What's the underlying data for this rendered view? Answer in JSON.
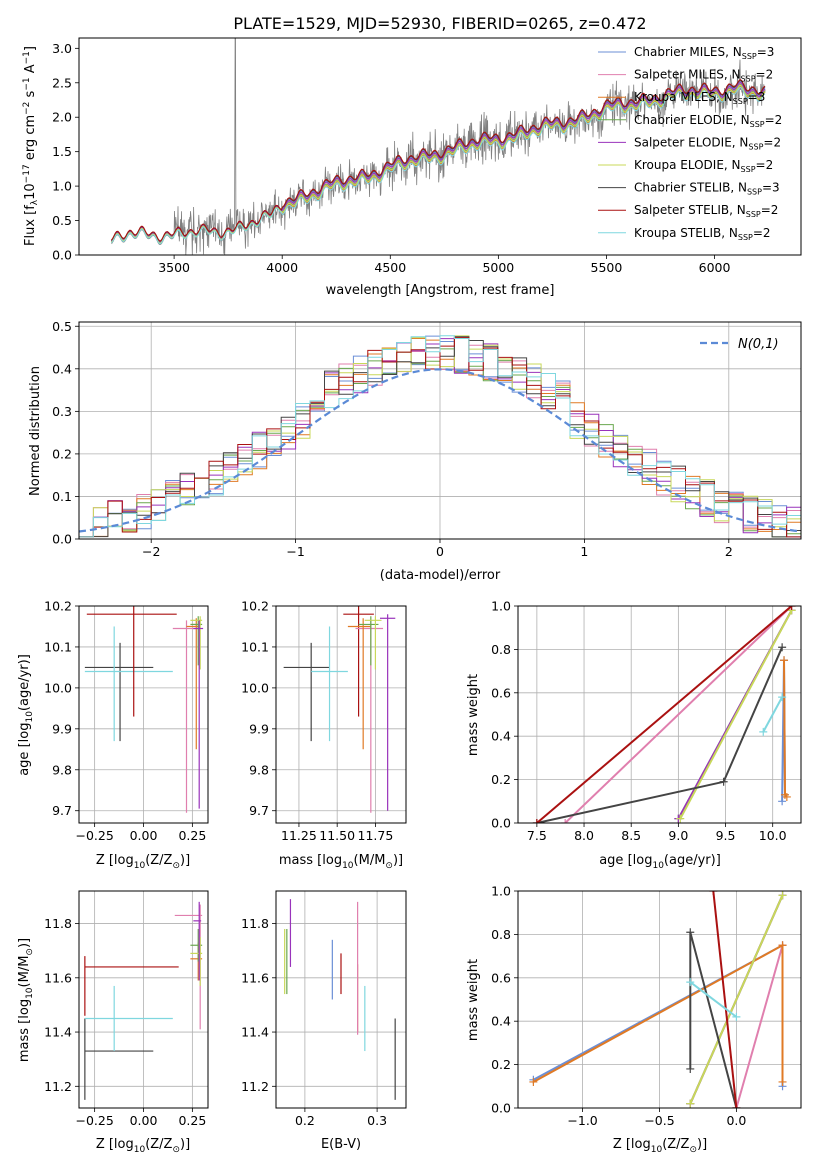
{
  "figure": {
    "title": "PLATE=1529, MJD=52930, FIBERID=0265, z=0.472"
  },
  "colors": {
    "chabrier_miles": "#6b8fd6",
    "salpeter_miles": "#e07fae",
    "kroupa_miles": "#e07a25",
    "chabrier_elodie": "#6aa84f",
    "salpeter_elodie": "#9933bb",
    "kroupa_elodie": "#c8d85a",
    "chabrier_stelib": "#444444",
    "salpeter_stelib": "#aa1111",
    "kroupa_stelib": "#7fd7df",
    "data": "#808080",
    "gaussian": "#5b8ad6"
  },
  "legend_series": [
    {
      "prefix": "Chabrier MILES, N",
      "sub": "SSP",
      "suffix": "=3",
      "color_key": "chabrier_miles"
    },
    {
      "prefix": "Salpeter MILES, N",
      "sub": "SSP",
      "suffix": "=2",
      "color_key": "salpeter_miles"
    },
    {
      "prefix": "Kroupa MILES, N",
      "sub": "SSP",
      "suffix": "=3",
      "color_key": "kroupa_miles"
    },
    {
      "prefix": "Chabrier ELODIE, N",
      "sub": "SSP",
      "suffix": "=2",
      "color_key": "chabrier_elodie"
    },
    {
      "prefix": "Salpeter ELODIE, N",
      "sub": "SSP",
      "suffix": "=2",
      "color_key": "salpeter_elodie"
    },
    {
      "prefix": "Kroupa ELODIE, N",
      "sub": "SSP",
      "suffix": "=2",
      "color_key": "kroupa_elodie"
    },
    {
      "prefix": "Chabrier STELIB, N",
      "sub": "SSP",
      "suffix": "=3",
      "color_key": "chabrier_stelib"
    },
    {
      "prefix": "Salpeter STELIB, N",
      "sub": "SSP",
      "suffix": "=2",
      "color_key": "salpeter_stelib"
    },
    {
      "prefix": "Kroupa STELIB, N",
      "sub": "SSP",
      "suffix": "=2",
      "color_key": "kroupa_stelib"
    }
  ],
  "chart_data": [
    {
      "id": "spectrum",
      "type": "line",
      "title": "PLATE=1529, MJD=52930, FIBERID=0265, z=0.472",
      "xlabel": "wavelength [Angstrom, rest frame]",
      "ylabel_parts": [
        "Flux [f",
        "λ",
        "10",
        "−17",
        " erg cm",
        "−2",
        " s",
        "−1",
        " A",
        "−1",
        "]"
      ],
      "xlim": [
        3060,
        6400
      ],
      "ylim": [
        0,
        3.15
      ],
      "xticks": [
        3500,
        4000,
        4500,
        5000,
        5500,
        6000
      ],
      "yticks": [
        0.0,
        0.5,
        1.0,
        1.5,
        2.0,
        2.5,
        3.0
      ],
      "data_range": [
        3210,
        6235
      ],
      "model_anchor_x": [
        3210,
        3300,
        3500,
        3700,
        3800,
        3950,
        4000,
        4100,
        4300,
        4500,
        4700,
        4900,
        5100,
        5300,
        5500,
        5700,
        5900,
        6100,
        6235
      ],
      "model_anchor_y": [
        0.2,
        0.3,
        0.3,
        0.33,
        0.4,
        0.55,
        0.72,
        0.85,
        1.05,
        1.25,
        1.45,
        1.6,
        1.75,
        1.9,
        2.1,
        2.25,
        2.35,
        2.4,
        2.3
      ]
    },
    {
      "id": "residuals",
      "type": "histogram",
      "xlabel": "(data-model)/error",
      "ylabel": "Normed distribution",
      "xlim": [
        -2.5,
        2.5
      ],
      "ylim": [
        0,
        0.51
      ],
      "xticks": [
        -2,
        -1,
        0,
        1,
        2
      ],
      "xticklabels": [
        "−2",
        "−1",
        "0",
        "1",
        "2"
      ],
      "yticks": [
        0.0,
        0.1,
        0.2,
        0.3,
        0.4,
        0.5
      ],
      "bin_width": 0.1,
      "legend": "N(0,1)"
    },
    {
      "id": "age_vs_Z",
      "type": "errorbar",
      "xlabel_parts": [
        "Z [log",
        "10",
        "(Z/Z",
        "⊙",
        ")]"
      ],
      "ylabel_parts": [
        "age  [log",
        "10",
        "(age/yr)]"
      ],
      "xlim": [
        -0.33,
        0.33
      ],
      "ylim": [
        9.67,
        10.2
      ],
      "xticks": [
        -0.25,
        0.0,
        0.25
      ],
      "xticklabels": [
        "−0.25",
        "0.00",
        "0.25"
      ],
      "yticks": [
        9.7,
        9.8,
        9.9,
        10.0,
        10.1,
        10.2
      ],
      "points": [
        {
          "color_key": "chabrier_stelib",
          "x": -0.12,
          "xerr_lo": 0.18,
          "xerr_hi": 0.17,
          "y": 10.05,
          "yerr_lo": 0.18,
          "yerr_hi": 0.06
        },
        {
          "color_key": "kroupa_stelib",
          "x": -0.15,
          "xerr_lo": 0.15,
          "xerr_hi": 0.3,
          "y": 10.04,
          "yerr_lo": 0.17,
          "yerr_hi": 0.11
        },
        {
          "color_key": "salpeter_stelib",
          "x": -0.05,
          "xerr_lo": 0.24,
          "xerr_hi": 0.22,
          "y": 10.18,
          "yerr_lo": 0.25,
          "yerr_hi": 0.02
        },
        {
          "color_key": "salpeter_miles",
          "x": 0.22,
          "xerr_lo": 0.07,
          "xerr_hi": 0.07,
          "y": 10.145,
          "yerr_lo": 0.45,
          "yerr_hi": 0.02
        },
        {
          "color_key": "kroupa_miles",
          "x": 0.27,
          "xerr_lo": 0.05,
          "xerr_hi": 0.02,
          "y": 10.15,
          "yerr_lo": 0.3,
          "yerr_hi": 0.02
        },
        {
          "color_key": "chabrier_elodie",
          "x": 0.28,
          "xerr_lo": 0.04,
          "xerr_hi": 0.02,
          "y": 10.155,
          "yerr_lo": 0.1,
          "yerr_hi": 0.02
        },
        {
          "color_key": "kroupa_elodie",
          "x": 0.29,
          "xerr_lo": 0.05,
          "xerr_hi": 0.01,
          "y": 10.165,
          "yerr_lo": 0.12,
          "yerr_hi": 0.01
        },
        {
          "color_key": "salpeter_elodie",
          "x": 0.285,
          "xerr_lo": 0.03,
          "xerr_hi": 0.02,
          "y": 10.145,
          "yerr_lo": 0.44,
          "yerr_hi": 0.02
        }
      ]
    },
    {
      "id": "age_vs_mass",
      "type": "errorbar",
      "xlabel_parts": [
        "mass [log",
        "10",
        "(M/M",
        "⊙",
        ")]"
      ],
      "xlim": [
        11.1,
        11.95
      ],
      "ylim": [
        9.67,
        10.2
      ],
      "xticks": [
        11.25,
        11.5,
        11.75
      ],
      "xticklabels": [
        "11.25",
        "11.50",
        "11.75"
      ],
      "yticks": [
        9.7,
        9.8,
        9.9,
        10.0,
        10.1,
        10.2
      ],
      "points": [
        {
          "color_key": "chabrier_stelib",
          "x": 11.33,
          "xerr_lo": 0.18,
          "xerr_hi": 0.12,
          "y": 10.05,
          "yerr_lo": 0.18,
          "yerr_hi": 0.06
        },
        {
          "color_key": "kroupa_stelib",
          "x": 11.45,
          "xerr_lo": 0.12,
          "xerr_hi": 0.12,
          "y": 10.04,
          "yerr_lo": 0.17,
          "yerr_hi": 0.11
        },
        {
          "color_key": "salpeter_stelib",
          "x": 11.64,
          "xerr_lo": 0.1,
          "xerr_hi": 0.1,
          "y": 10.18,
          "yerr_lo": 0.25,
          "yerr_hi": 0.02
        },
        {
          "color_key": "salpeter_miles",
          "x": 11.72,
          "xerr_lo": 0.1,
          "xerr_hi": 0.08,
          "y": 10.145,
          "yerr_lo": 0.45,
          "yerr_hi": 0.02
        },
        {
          "color_key": "kroupa_miles",
          "x": 11.67,
          "xerr_lo": 0.1,
          "xerr_hi": 0.05,
          "y": 10.15,
          "yerr_lo": 0.3,
          "yerr_hi": 0.02
        },
        {
          "color_key": "chabrier_elodie",
          "x": 11.72,
          "xerr_lo": 0.08,
          "xerr_hi": 0.05,
          "y": 10.155,
          "yerr_lo": 0.1,
          "yerr_hi": 0.02
        },
        {
          "color_key": "kroupa_elodie",
          "x": 11.75,
          "xerr_lo": 0.07,
          "xerr_hi": 0.04,
          "y": 10.165,
          "yerr_lo": 0.12,
          "yerr_hi": 0.01
        },
        {
          "color_key": "salpeter_elodie",
          "x": 11.83,
          "xerr_lo": 0.05,
          "xerr_hi": 0.05,
          "y": 10.17,
          "yerr_lo": 0.47,
          "yerr_hi": 0.01
        }
      ]
    },
    {
      "id": "weight_vs_age",
      "type": "line",
      "xlabel_parts": [
        "age  [log",
        "10",
        "(age/yr)]"
      ],
      "ylabel": "mass weight",
      "xlim": [
        7.3,
        10.3
      ],
      "ylim": [
        0,
        1
      ],
      "xticks": [
        7.5,
        8.0,
        8.5,
        9.0,
        9.5,
        10.0
      ],
      "xticklabels": [
        "7.5",
        "8.0",
        "8.5",
        "9.0",
        "9.5",
        "10.0"
      ],
      "yticks": [
        0.0,
        0.2,
        0.4,
        0.6,
        0.8,
        1.0
      ],
      "series": [
        {
          "color_key": "chabrier_miles",
          "x": [
            10.1,
            10.12,
            10.13
          ],
          "y": [
            0.1,
            0.75,
            0.13
          ]
        },
        {
          "color_key": "salpeter_miles",
          "x": [
            7.8,
            10.2
          ],
          "y": [
            0.0,
            1.0
          ]
        },
        {
          "color_key": "kroupa_miles",
          "x": [
            10.12,
            10.13,
            10.15
          ],
          "y": [
            0.75,
            0.13,
            0.12
          ]
        },
        {
          "color_key": "chabrier_elodie",
          "x": [
            9.0,
            10.2
          ],
          "y": [
            0.02,
            0.98
          ]
        },
        {
          "color_key": "salpeter_elodie",
          "x": [
            9.0,
            10.2
          ],
          "y": [
            0.02,
            0.98
          ]
        },
        {
          "color_key": "kroupa_elodie",
          "x": [
            9.02,
            10.2
          ],
          "y": [
            0.02,
            0.98
          ]
        },
        {
          "color_key": "chabrier_stelib",
          "x": [
            7.5,
            9.48,
            10.1
          ],
          "y": [
            0.0,
            0.19,
            0.81
          ]
        },
        {
          "color_key": "salpeter_stelib",
          "x": [
            7.5,
            10.2
          ],
          "y": [
            0.0,
            1.0
          ]
        },
        {
          "color_key": "kroupa_stelib",
          "x": [
            9.9,
            10.1
          ],
          "y": [
            0.42,
            0.58
          ]
        }
      ]
    },
    {
      "id": "mass_vs_Z",
      "type": "errorbar",
      "xlabel_parts": [
        "Z [log",
        "10",
        "(Z/Z",
        "⊙",
        ")]"
      ],
      "ylabel_parts": [
        "mass [log",
        "10",
        "(M/M",
        "⊙",
        ")]"
      ],
      "xlim": [
        -0.33,
        0.33
      ],
      "ylim": [
        11.12,
        11.92
      ],
      "xticks": [
        -0.25,
        0.0,
        0.25
      ],
      "xticklabels": [
        "−0.25",
        "0.00",
        "0.25"
      ],
      "yticks": [
        11.2,
        11.4,
        11.6,
        11.8
      ],
      "points": [
        {
          "color_key": "chabrier_stelib",
          "x": -0.3,
          "xerr_lo": 0.0,
          "xerr_hi": 0.35,
          "y": 11.33,
          "yerr_lo": 0.18,
          "yerr_hi": 0.12
        },
        {
          "color_key": "kroupa_stelib",
          "x": -0.15,
          "xerr_lo": 0.15,
          "xerr_hi": 0.3,
          "y": 11.45,
          "yerr_lo": 0.12,
          "yerr_hi": 0.12
        },
        {
          "color_key": "salpeter_stelib",
          "x": -0.3,
          "xerr_lo": 0.0,
          "xerr_hi": 0.48,
          "y": 11.64,
          "yerr_lo": 0.18,
          "yerr_hi": 0.04
        },
        {
          "color_key": "salpeter_miles",
          "x": 0.29,
          "xerr_lo": 0.13,
          "xerr_hi": 0.01,
          "y": 11.83,
          "yerr_lo": 0.42,
          "yerr_hi": 0.04
        },
        {
          "color_key": "kroupa_miles",
          "x": 0.28,
          "xerr_lo": 0.04,
          "xerr_hi": 0.02,
          "y": 11.67,
          "yerr_lo": 0.08,
          "yerr_hi": 0.06
        },
        {
          "color_key": "chabrier_elodie",
          "x": 0.28,
          "xerr_lo": 0.04,
          "xerr_hi": 0.02,
          "y": 11.72,
          "yerr_lo": 0.06,
          "yerr_hi": 0.06
        },
        {
          "color_key": "kroupa_elodie",
          "x": 0.29,
          "xerr_lo": 0.05,
          "xerr_hi": 0.01,
          "y": 11.69,
          "yerr_lo": 0.12,
          "yerr_hi": 0.06
        },
        {
          "color_key": "salpeter_elodie",
          "x": 0.285,
          "xerr_lo": 0.03,
          "xerr_hi": 0.01,
          "y": 11.81,
          "yerr_lo": 0.22,
          "yerr_hi": 0.07
        }
      ]
    },
    {
      "id": "mass_vs_ebv",
      "type": "errorbar",
      "xlabel": "E(B-V)",
      "xlim": [
        0.16,
        0.34
      ],
      "ylim": [
        11.12,
        11.92
      ],
      "xticks": [
        0.2,
        0.3
      ],
      "xticklabels": [
        "0.2",
        "0.3"
      ],
      "yticks": [
        11.2,
        11.4,
        11.6,
        11.8
      ],
      "points": [
        {
          "color_key": "kroupa_elodie",
          "x": 0.172,
          "y": 11.66,
          "yerr_lo": 0.12,
          "yerr_hi": 0.12
        },
        {
          "color_key": "chabrier_elodie",
          "x": 0.175,
          "y": 11.66,
          "yerr_lo": 0.12,
          "yerr_hi": 0.12
        },
        {
          "color_key": "salpeter_elodie",
          "x": 0.18,
          "y": 11.79,
          "yerr_lo": 0.15,
          "yerr_hi": 0.1
        },
        {
          "color_key": "chabrier_miles",
          "x": 0.238,
          "y": 11.59,
          "yerr_lo": 0.07,
          "yerr_hi": 0.15
        },
        {
          "color_key": "salpeter_stelib",
          "x": 0.25,
          "y": 11.61,
          "yerr_lo": 0.07,
          "yerr_hi": 0.08
        },
        {
          "color_key": "kroupa_miles",
          "x": 0.273,
          "y": 11.59,
          "yerr_lo": 0.19,
          "yerr_hi": 0.06
        },
        {
          "color_key": "salpeter_miles",
          "x": 0.273,
          "y": 11.64,
          "yerr_lo": 0.25,
          "yerr_hi": 0.24
        },
        {
          "color_key": "kroupa_stelib",
          "x": 0.283,
          "y": 11.45,
          "yerr_lo": 0.12,
          "yerr_hi": 0.12
        },
        {
          "color_key": "chabrier_stelib",
          "x": 0.325,
          "y": 11.3,
          "yerr_lo": 0.15,
          "yerr_hi": 0.15
        }
      ]
    },
    {
      "id": "weight_vs_Z",
      "type": "line",
      "xlabel_parts": [
        "Z [log",
        "10",
        "(Z/Z",
        "⊙",
        ")]"
      ],
      "ylabel": "mass weight",
      "xlim": [
        -1.42,
        0.42
      ],
      "ylim": [
        0,
        1
      ],
      "xticks": [
        -1.0,
        -0.5,
        0.0
      ],
      "xticklabels": [
        "−1.0",
        "−0.5",
        "0.0"
      ],
      "yticks": [
        0.0,
        0.2,
        0.4,
        0.6,
        0.8,
        1.0
      ],
      "series": [
        {
          "color_key": "chabrier_miles",
          "x": [
            -1.32,
            0.3,
            0.3
          ],
          "y": [
            0.13,
            0.75,
            0.1
          ]
        },
        {
          "color_key": "salpeter_miles",
          "x": [
            0.0,
            0.3
          ],
          "y": [
            0.0,
            0.75
          ]
        },
        {
          "color_key": "kroupa_miles",
          "x": [
            -1.32,
            0.3,
            0.3
          ],
          "y": [
            0.12,
            0.75,
            0.12
          ]
        },
        {
          "color_key": "chabrier_elodie",
          "x": [
            -0.3,
            0.3
          ],
          "y": [
            0.02,
            0.98
          ]
        },
        {
          "color_key": "salpeter_elodie",
          "x": [
            -0.3,
            0.3
          ],
          "y": [
            0.02,
            0.98
          ]
        },
        {
          "color_key": "kroupa_elodie",
          "x": [
            -0.3,
            0.3
          ],
          "y": [
            0.02,
            0.98
          ]
        },
        {
          "color_key": "chabrier_stelib",
          "x": [
            -0.3,
            -0.3,
            0.0
          ],
          "y": [
            0.18,
            0.81,
            0.0
          ]
        },
        {
          "color_key": "salpeter_stelib",
          "x": [
            -0.15,
            0.0
          ],
          "y": [
            1.0,
            0.0
          ]
        },
        {
          "color_key": "kroupa_stelib",
          "x": [
            -0.3,
            0.0
          ],
          "y": [
            0.58,
            0.42
          ]
        }
      ]
    }
  ]
}
